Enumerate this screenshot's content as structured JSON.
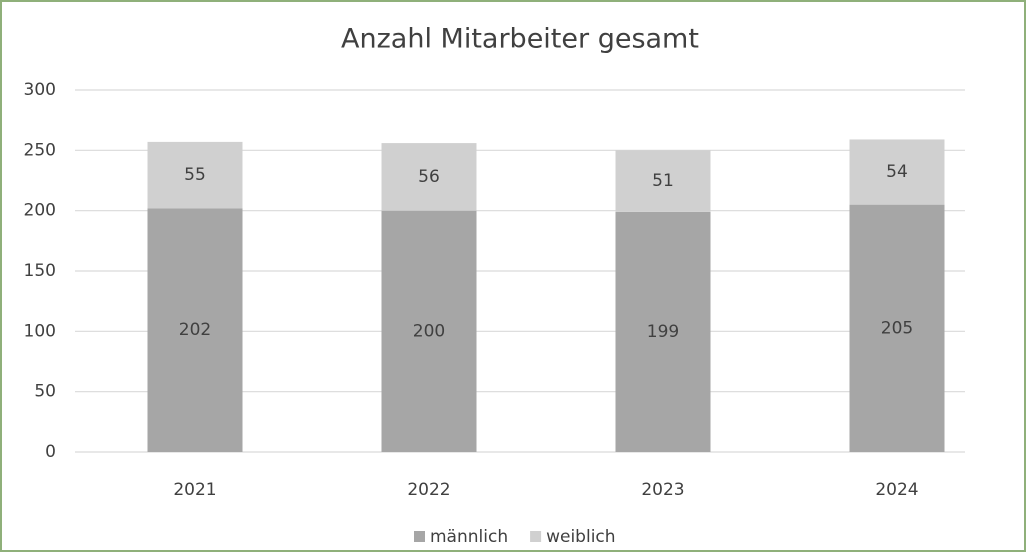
{
  "chart_data": {
    "type": "bar",
    "stacked": true,
    "title": "Anzahl Mitarbeiter gesamt",
    "categories": [
      "2021",
      "2022",
      "2023",
      "2024"
    ],
    "series": [
      {
        "name": "männlich",
        "color": "#a6a6a6",
        "values": [
          202,
          200,
          199,
          205
        ]
      },
      {
        "name": "weiblich",
        "color": "#d0d0d0",
        "values": [
          55,
          56,
          51,
          54
        ]
      }
    ],
    "ylim": [
      0,
      300
    ],
    "yticks": [
      0,
      50,
      100,
      150,
      200,
      250,
      300
    ],
    "grid": true,
    "legend": "bottom"
  }
}
